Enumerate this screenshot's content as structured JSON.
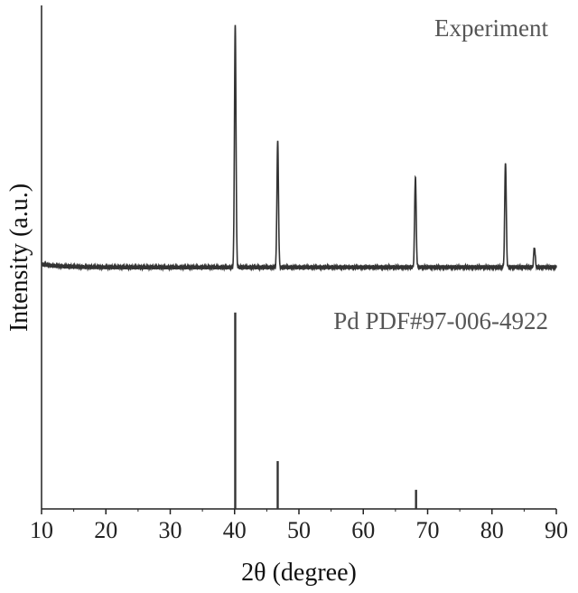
{
  "chart_data": {
    "type": "line",
    "xlabel": "2θ (degree)",
    "ylabel": "Intensity (a.u.)",
    "xlim": [
      10,
      90
    ],
    "x_ticks": [
      "10",
      "20",
      "30",
      "40",
      "50",
      "60",
      "70",
      "80",
      "90"
    ],
    "ylim": [
      0,
      1
    ],
    "grid": false,
    "colors": {
      "line": "#333333",
      "text_muted": "#555555"
    },
    "series": [
      {
        "name": "Experiment",
        "baseline": 0.48,
        "peaks": [
          {
            "x": 40.1,
            "y": 0.96
          },
          {
            "x": 46.7,
            "y": 0.73
          },
          {
            "x": 68.1,
            "y": 0.66
          },
          {
            "x": 82.1,
            "y": 0.69
          },
          {
            "x": 86.6,
            "y": 0.52
          }
        ]
      },
      {
        "name": "Pd PDF#97-006-4922",
        "baseline": 0.0,
        "sticks": [
          {
            "x": 40.1,
            "y": 0.39
          },
          {
            "x": 46.7,
            "y": 0.095
          },
          {
            "x": 68.2,
            "y": 0.038
          }
        ]
      }
    ]
  }
}
